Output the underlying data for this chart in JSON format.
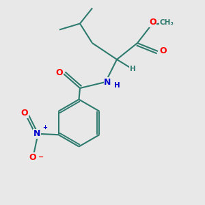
{
  "bg_color": "#e8e8e8",
  "bond_color": "#2d7a6e",
  "bond_width": 1.5,
  "atom_colors": {
    "O": "#ff0000",
    "N": "#0000cd",
    "C": "#2d7a6e",
    "H": "#2d7a6e"
  },
  "font_size_large": 9,
  "font_size_small": 7.5,
  "font_size_label": 8
}
